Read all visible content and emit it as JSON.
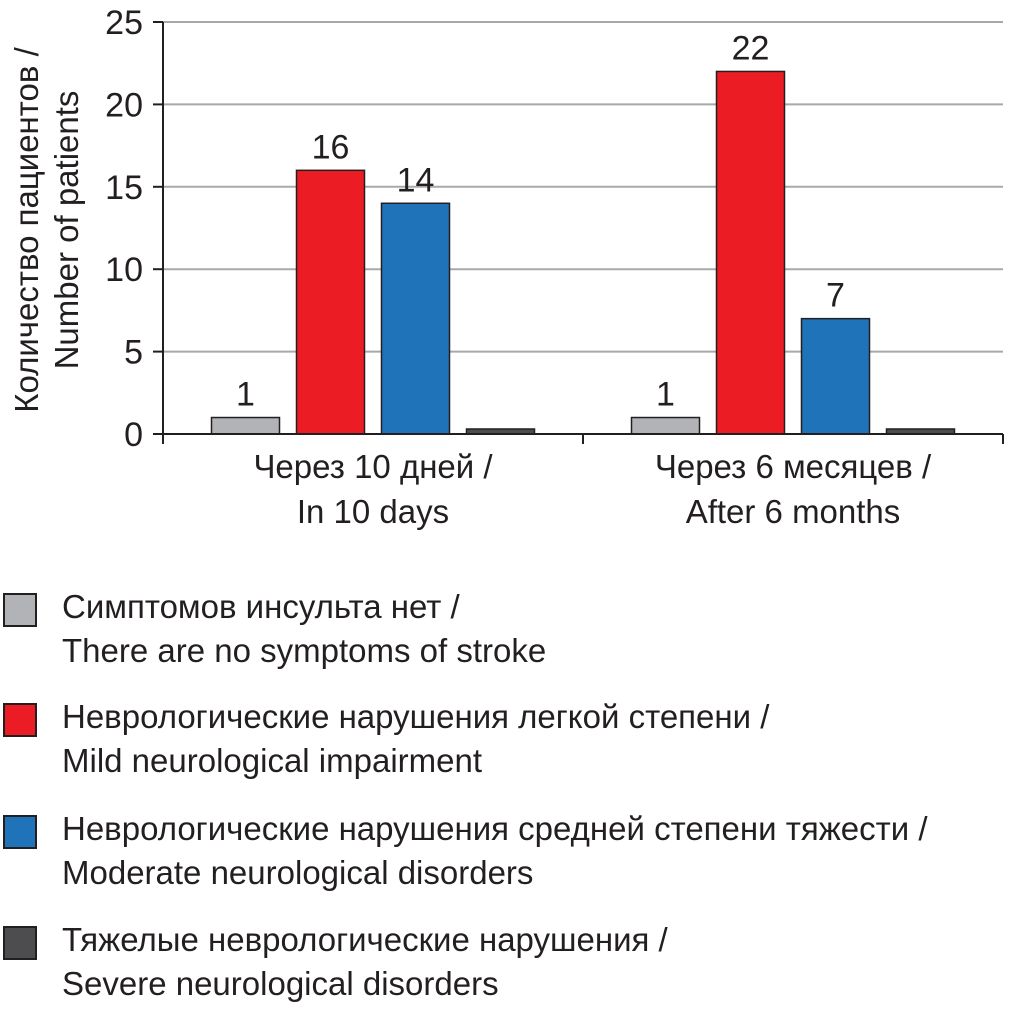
{
  "chart_data": {
    "type": "bar",
    "ylabel_lines": [
      "Количество пациентов /",
      "Number of patients"
    ],
    "ylim": [
      0,
      25
    ],
    "yticks": [
      0,
      5,
      10,
      15,
      20,
      25
    ],
    "grid": true,
    "categories": [
      {
        "lines": [
          "Через 10 дней /",
          "In 10 days"
        ]
      },
      {
        "lines": [
          "Через 6 месяцев /",
          "After 6 months"
        ]
      }
    ],
    "series": [
      {
        "name_lines": [
          "Симптомов инсульта нет /",
          "There are no symptoms of stroke"
        ],
        "color": "#b1b3b6",
        "values": [
          1,
          1
        ],
        "labels": [
          "1",
          "1"
        ]
      },
      {
        "name_lines": [
          "Неврологические нарушения легкой степени /",
          "Mild neurological impairment"
        ],
        "color": "#ec1c24",
        "values": [
          16,
          22
        ],
        "labels": [
          "16",
          "22"
        ]
      },
      {
        "name_lines": [
          "Неврологические нарушения средней степени тяжести /",
          "Moderate neurological disorders"
        ],
        "color": "#1f73b9",
        "values": [
          14,
          7
        ],
        "labels": [
          "14",
          "7"
        ]
      },
      {
        "name_lines": [
          "Тяжелые неврологические нарушения /",
          "Severe neurological disorders"
        ],
        "color": "#4d4d4f",
        "values": [
          0,
          0
        ],
        "labels": [
          "",
          ""
        ]
      }
    ],
    "legend_position": "bottom"
  }
}
